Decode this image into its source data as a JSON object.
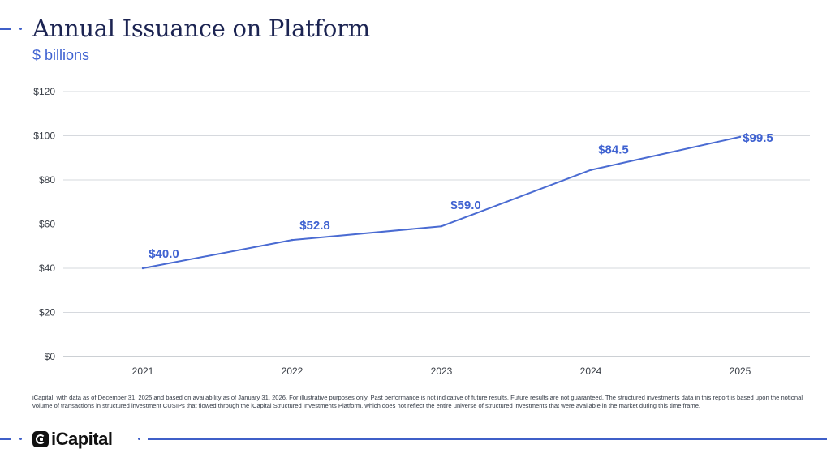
{
  "header": {
    "title": "Annual Issuance on Platform",
    "subtitle": "$ billions"
  },
  "chart_data": {
    "type": "line",
    "title": "Annual Issuance on Platform",
    "subtitle": "$ billions",
    "x": [
      "2021",
      "2022",
      "2023",
      "2024",
      "2025"
    ],
    "series": [
      {
        "values": [
          40.0,
          52.8,
          59.0,
          84.5,
          99.5
        ]
      }
    ],
    "data_labels": [
      "$40.0",
      "$52.8",
      "$59.0",
      "$84.5",
      "$99.5"
    ],
    "y_ticks": [
      0,
      20,
      40,
      60,
      80,
      100,
      120
    ],
    "y_tick_labels": [
      "$0",
      "$20",
      "$40",
      "$60",
      "$80",
      "$100",
      "$120"
    ],
    "ylim": [
      0,
      120
    ],
    "grid": true,
    "legend": "none",
    "line_color": "#4a6bd2",
    "label_color": "#3f62d1"
  },
  "footnote": "iCapital, with data as of December 31, 2025 and based on availability as of January 31, 2026. For illustrative purposes only. Past performance is not indicative of future results. Future results are not guaranteed. The structured investments data in this report is based upon the notional volume of transactions in structured investment CUSIPs that flowed through the iCapital Structured Investments Platform, which does not reflect the entire universe of structured investments that were available in the market during this time frame.",
  "footer": {
    "logo_text": "iCapital"
  }
}
